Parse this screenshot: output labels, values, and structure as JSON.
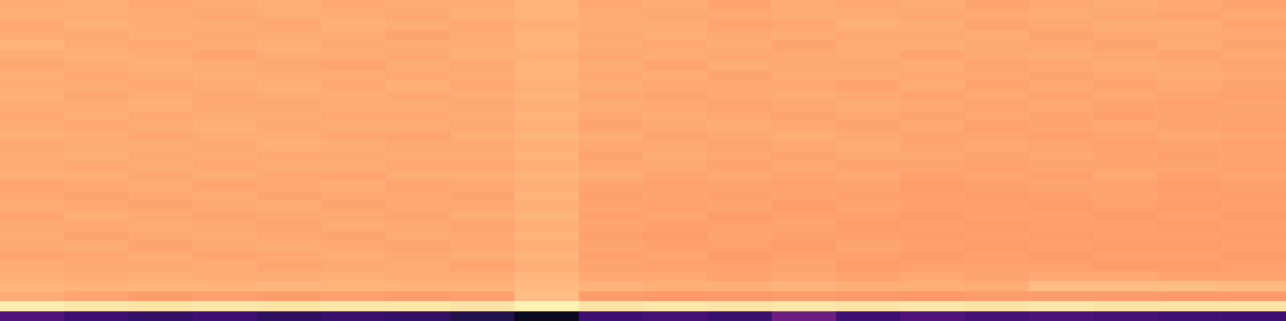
{
  "chart_data": {
    "type": "heatmap",
    "color": "magma",
    "zlim": [
      0,
      1
    ],
    "tick_labels": false,
    "cells": [
      [
        0.8,
        0.81,
        0.79,
        0.8,
        0.81,
        0.79,
        0.8,
        0.8,
        0.82,
        0.79,
        0.8,
        0.78,
        0.8,
        0.79,
        0.8,
        0.78,
        0.79,
        0.8,
        0.79,
        0.78
      ],
      [
        0.81,
        0.8,
        0.8,
        0.79,
        0.8,
        0.8,
        0.79,
        0.81,
        0.82,
        0.8,
        0.79,
        0.79,
        0.8,
        0.8,
        0.79,
        0.79,
        0.8,
        0.79,
        0.78,
        0.79
      ],
      [
        0.79,
        0.81,
        0.8,
        0.8,
        0.79,
        0.81,
        0.8,
        0.79,
        0.81,
        0.8,
        0.8,
        0.78,
        0.79,
        0.81,
        0.8,
        0.78,
        0.79,
        0.8,
        0.8,
        0.78
      ],
      [
        0.8,
        0.79,
        0.81,
        0.79,
        0.8,
        0.8,
        0.78,
        0.8,
        0.82,
        0.79,
        0.81,
        0.79,
        0.8,
        0.79,
        0.79,
        0.8,
        0.78,
        0.79,
        0.79,
        0.79
      ],
      [
        0.82,
        0.8,
        0.79,
        0.8,
        0.81,
        0.79,
        0.8,
        0.8,
        0.82,
        0.8,
        0.79,
        0.8,
        0.78,
        0.8,
        0.8,
        0.79,
        0.79,
        0.78,
        0.8,
        0.78
      ],
      [
        0.8,
        0.81,
        0.8,
        0.78,
        0.8,
        0.8,
        0.79,
        0.81,
        0.81,
        0.79,
        0.8,
        0.79,
        0.79,
        0.8,
        0.78,
        0.79,
        0.8,
        0.79,
        0.78,
        0.79
      ],
      [
        0.79,
        0.8,
        0.81,
        0.8,
        0.79,
        0.78,
        0.8,
        0.79,
        0.82,
        0.8,
        0.78,
        0.8,
        0.79,
        0.79,
        0.8,
        0.78,
        0.79,
        0.8,
        0.79,
        0.78
      ],
      [
        0.81,
        0.79,
        0.8,
        0.81,
        0.8,
        0.8,
        0.79,
        0.8,
        0.82,
        0.79,
        0.8,
        0.78,
        0.8,
        0.8,
        0.79,
        0.79,
        0.78,
        0.79,
        0.8,
        0.79
      ],
      [
        0.8,
        0.8,
        0.79,
        0.8,
        0.81,
        0.79,
        0.81,
        0.79,
        0.81,
        0.8,
        0.79,
        0.79,
        0.79,
        0.78,
        0.8,
        0.78,
        0.79,
        0.78,
        0.79,
        0.78
      ],
      [
        0.81,
        0.79,
        0.8,
        0.79,
        0.8,
        0.8,
        0.79,
        0.8,
        0.82,
        0.79,
        0.78,
        0.79,
        0.8,
        0.79,
        0.78,
        0.79,
        0.78,
        0.79,
        0.78,
        0.77
      ],
      [
        0.8,
        0.8,
        0.81,
        0.79,
        0.79,
        0.8,
        0.8,
        0.79,
        0.81,
        0.8,
        0.79,
        0.78,
        0.79,
        0.8,
        0.79,
        0.78,
        0.79,
        0.78,
        0.77,
        0.78
      ],
      [
        0.79,
        0.81,
        0.79,
        0.8,
        0.8,
        0.79,
        0.79,
        0.8,
        0.82,
        0.79,
        0.8,
        0.79,
        0.78,
        0.79,
        0.78,
        0.79,
        0.78,
        0.77,
        0.78,
        0.78
      ],
      [
        0.8,
        0.79,
        0.8,
        0.81,
        0.79,
        0.8,
        0.8,
        0.79,
        0.81,
        0.78,
        0.79,
        0.8,
        0.79,
        0.78,
        0.79,
        0.77,
        0.78,
        0.79,
        0.78,
        0.77
      ],
      [
        0.81,
        0.8,
        0.79,
        0.8,
        0.8,
        0.79,
        0.78,
        0.8,
        0.82,
        0.8,
        0.78,
        0.79,
        0.8,
        0.79,
        0.78,
        0.78,
        0.77,
        0.78,
        0.79,
        0.78
      ],
      [
        0.79,
        0.8,
        0.8,
        0.79,
        0.81,
        0.8,
        0.79,
        0.79,
        0.81,
        0.79,
        0.79,
        0.78,
        0.79,
        0.8,
        0.78,
        0.79,
        0.78,
        0.77,
        0.78,
        0.77
      ],
      [
        0.8,
        0.81,
        0.79,
        0.8,
        0.79,
        0.79,
        0.8,
        0.8,
        0.82,
        0.78,
        0.8,
        0.79,
        0.78,
        0.79,
        0.79,
        0.78,
        0.79,
        0.78,
        0.77,
        0.78
      ],
      [
        0.8,
        0.79,
        0.8,
        0.79,
        0.8,
        0.8,
        0.79,
        0.79,
        0.81,
        0.79,
        0.79,
        0.78,
        0.79,
        0.78,
        0.78,
        0.77,
        0.78,
        0.78,
        0.78,
        0.77
      ],
      [
        0.81,
        0.8,
        0.79,
        0.8,
        0.79,
        0.78,
        0.8,
        0.8,
        0.82,
        0.8,
        0.78,
        0.79,
        0.78,
        0.79,
        0.77,
        0.78,
        0.77,
        0.79,
        0.77,
        0.78
      ],
      [
        0.78,
        0.79,
        0.8,
        0.78,
        0.79,
        0.8,
        0.78,
        0.79,
        0.81,
        0.78,
        0.77,
        0.78,
        0.77,
        0.78,
        0.76,
        0.77,
        0.78,
        0.77,
        0.76,
        0.77
      ],
      [
        0.79,
        0.78,
        0.79,
        0.8,
        0.78,
        0.79,
        0.79,
        0.78,
        0.82,
        0.77,
        0.78,
        0.77,
        0.78,
        0.77,
        0.77,
        0.76,
        0.77,
        0.78,
        0.77,
        0.76
      ],
      [
        0.8,
        0.79,
        0.78,
        0.79,
        0.8,
        0.78,
        0.79,
        0.79,
        0.81,
        0.78,
        0.77,
        0.78,
        0.76,
        0.78,
        0.77,
        0.77,
        0.76,
        0.77,
        0.76,
        0.77
      ],
      [
        0.78,
        0.8,
        0.79,
        0.78,
        0.79,
        0.79,
        0.78,
        0.8,
        0.82,
        0.77,
        0.78,
        0.76,
        0.77,
        0.77,
        0.76,
        0.77,
        0.77,
        0.76,
        0.77,
        0.76
      ],
      [
        0.79,
        0.79,
        0.8,
        0.79,
        0.78,
        0.8,
        0.79,
        0.78,
        0.81,
        0.78,
        0.77,
        0.77,
        0.78,
        0.76,
        0.77,
        0.76,
        0.77,
        0.77,
        0.76,
        0.77
      ],
      [
        0.8,
        0.78,
        0.79,
        0.8,
        0.79,
        0.78,
        0.8,
        0.79,
        0.82,
        0.77,
        0.76,
        0.78,
        0.77,
        0.77,
        0.76,
        0.77,
        0.76,
        0.77,
        0.77,
        0.76
      ],
      [
        0.79,
        0.8,
        0.78,
        0.79,
        0.8,
        0.79,
        0.78,
        0.79,
        0.81,
        0.78,
        0.77,
        0.77,
        0.76,
        0.78,
        0.77,
        0.76,
        0.77,
        0.76,
        0.76,
        0.77
      ],
      [
        0.78,
        0.79,
        0.8,
        0.78,
        0.79,
        0.8,
        0.79,
        0.8,
        0.82,
        0.77,
        0.78,
        0.76,
        0.77,
        0.77,
        0.76,
        0.77,
        0.76,
        0.77,
        0.77,
        0.76
      ],
      [
        0.8,
        0.79,
        0.79,
        0.8,
        0.78,
        0.79,
        0.8,
        0.78,
        0.81,
        0.78,
        0.77,
        0.77,
        0.78,
        0.76,
        0.77,
        0.77,
        0.77,
        0.76,
        0.76,
        0.77
      ],
      [
        0.81,
        0.8,
        0.81,
        0.8,
        0.8,
        0.81,
        0.8,
        0.8,
        0.83,
        0.79,
        0.79,
        0.78,
        0.79,
        0.78,
        0.79,
        0.78,
        0.79,
        0.79,
        0.78,
        0.78
      ],
      [
        0.83,
        0.82,
        0.83,
        0.82,
        0.83,
        0.82,
        0.82,
        0.82,
        0.84,
        0.82,
        0.81,
        0.81,
        0.82,
        0.81,
        0.81,
        0.8,
        0.85,
        0.85,
        0.85,
        0.84
      ],
      [
        0.8,
        0.78,
        0.76,
        0.77,
        0.76,
        0.77,
        0.76,
        0.77,
        0.85,
        0.76,
        0.75,
        0.75,
        0.76,
        0.75,
        0.75,
        0.76,
        0.76,
        0.76,
        0.75,
        0.75
      ],
      [
        0.97,
        0.96,
        0.95,
        0.96,
        0.95,
        0.96,
        0.96,
        0.95,
        0.98,
        0.95,
        0.96,
        0.95,
        0.96,
        0.95,
        0.96,
        0.95,
        0.96,
        0.95,
        0.95,
        0.95
      ],
      [
        0.22,
        0.18,
        0.16,
        0.18,
        0.15,
        0.17,
        0.16,
        0.12,
        0.05,
        0.18,
        0.2,
        0.17,
        0.28,
        0.18,
        0.22,
        0.2,
        0.21,
        0.2,
        0.19,
        0.18
      ]
    ]
  }
}
